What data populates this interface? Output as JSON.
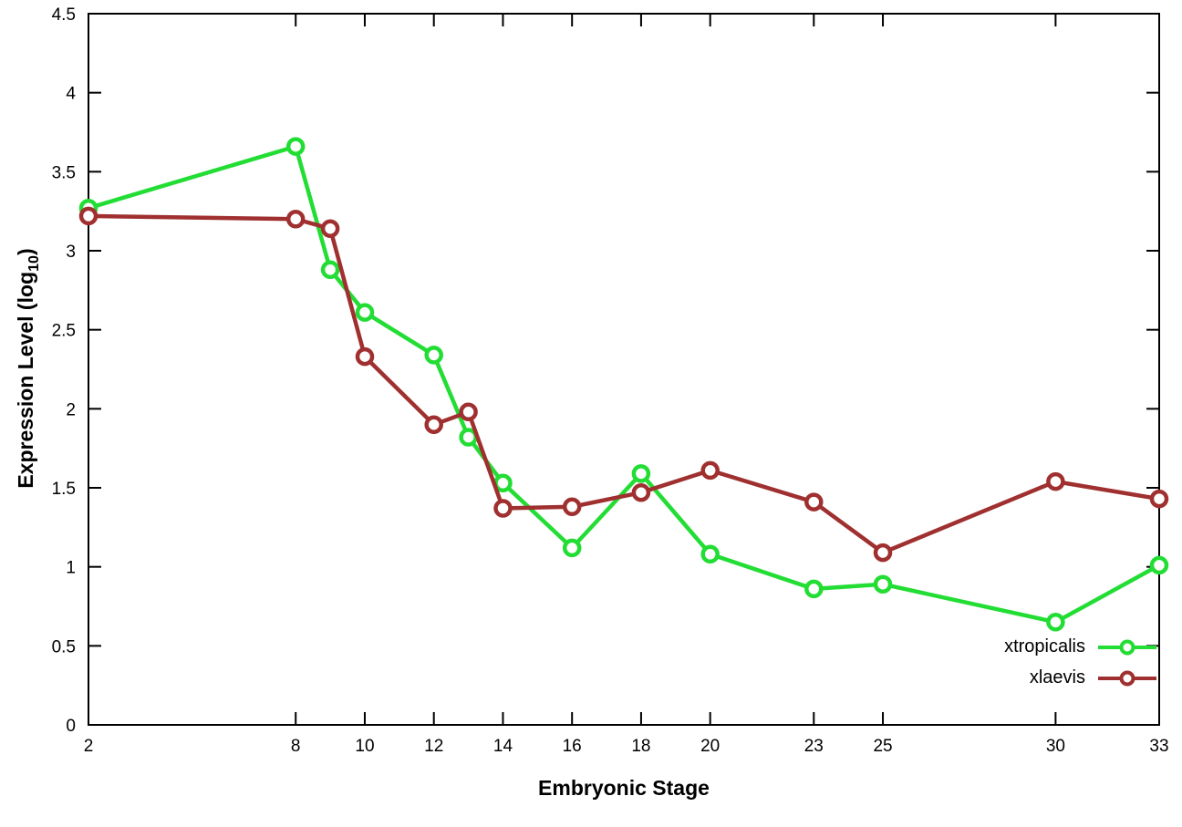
{
  "chart_data": {
    "type": "line",
    "x": [
      2,
      8,
      9,
      10,
      12,
      13,
      14,
      16,
      18,
      20,
      23,
      25,
      30,
      33
    ],
    "series": [
      {
        "name": "xtropicalis",
        "color": "#22dd33",
        "values": [
          3.27,
          3.66,
          2.88,
          2.61,
          2.34,
          1.82,
          1.53,
          1.12,
          1.59,
          1.08,
          0.86,
          0.89,
          0.65,
          1.01
        ]
      },
      {
        "name": "xlaevis",
        "color": "#a03030",
        "values": [
          3.22,
          3.2,
          3.14,
          2.33,
          1.9,
          1.98,
          1.37,
          1.38,
          1.47,
          1.61,
          1.41,
          1.09,
          1.54,
          1.43
        ]
      }
    ],
    "xticks": [
      2,
      8,
      10,
      12,
      14,
      16,
      18,
      20,
      23,
      25,
      30,
      33
    ],
    "yticks": [
      0,
      0.5,
      1,
      1.5,
      2,
      2.5,
      3,
      3.5,
      4,
      4.5
    ],
    "xlim": [
      2,
      33
    ],
    "ylim": [
      0,
      4.5
    ],
    "xlabel": "Embryonic Stage",
    "ylabel": "Expression Level (log10)",
    "legend_position": "bottom-right",
    "grid": false,
    "marker": "open-circle",
    "background": "#ffffff",
    "axis_color": "#000000"
  },
  "labels": {
    "xlabel": "Embryonic Stage",
    "ylabel_prefix": "Expression Level (log",
    "ylabel_sub": "10",
    "ylabel_suffix": ")"
  }
}
